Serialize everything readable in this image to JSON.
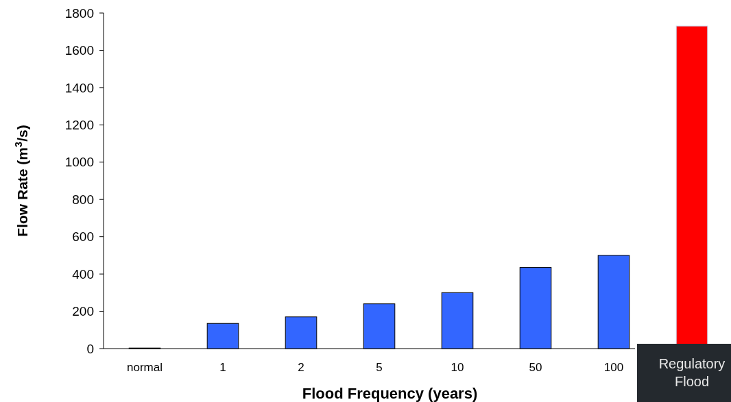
{
  "chart_data": {
    "type": "bar",
    "xlabel": "Flood Frequency (years)",
    "ylabel": "Flow Rate (m$^{3}$/s)",
    "categories": [
      "normal",
      "1",
      "2",
      "5",
      "10",
      "50",
      "100",
      "Regulatory Flood"
    ],
    "values": [
      3,
      135,
      170,
      240,
      300,
      435,
      500,
      1730
    ],
    "colors": [
      "#3366ff",
      "#3366ff",
      "#3366ff",
      "#3366ff",
      "#3366ff",
      "#3366ff",
      "#3366ff",
      "#ff0000"
    ],
    "ylim": [
      0,
      1800
    ],
    "yticks": [
      0,
      200,
      400,
      600,
      800,
      1000,
      1200,
      1400,
      1600,
      1800
    ],
    "grid": false
  }
}
